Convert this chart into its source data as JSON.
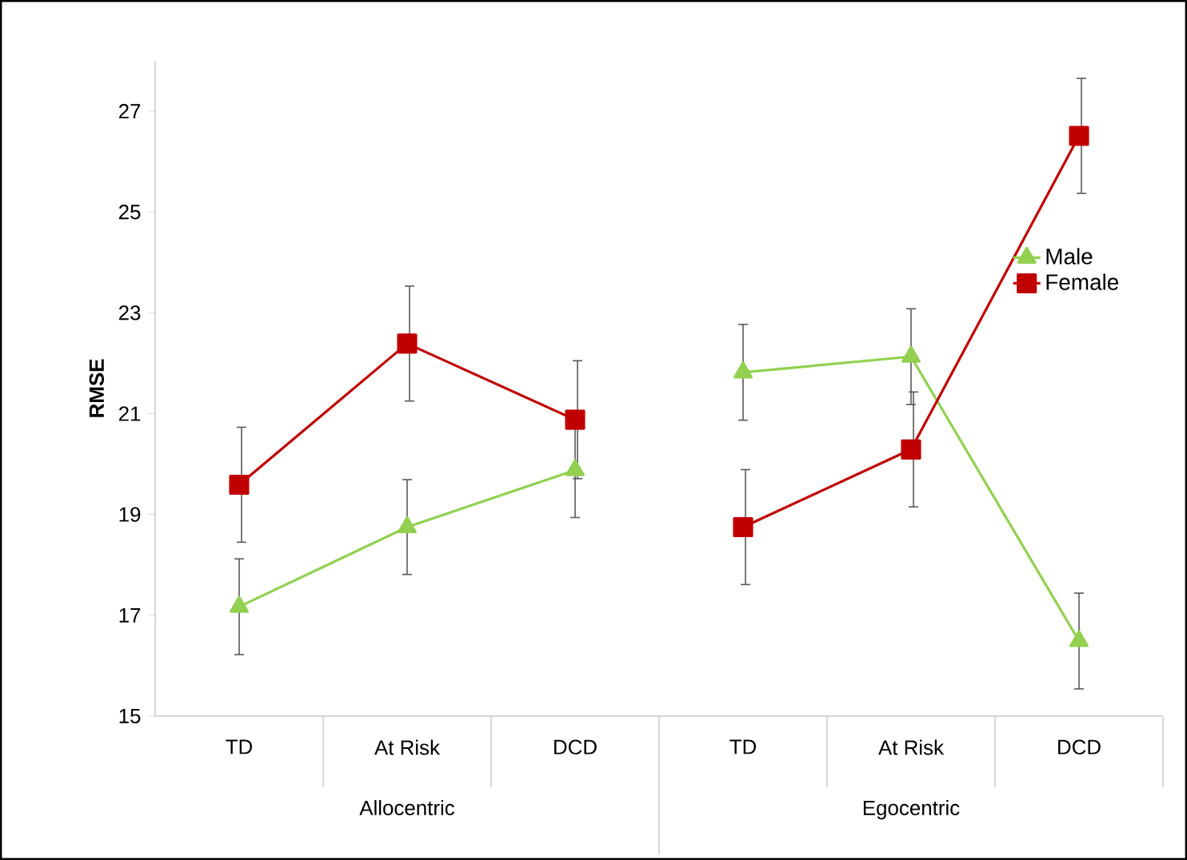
{
  "chart_data": {
    "type": "line",
    "ylabel": "RMSE",
    "categories": [
      "TD",
      "At Risk",
      "DCD",
      "TD",
      "At Risk",
      "DCD"
    ],
    "annotations": [
      "Allocentric",
      "Egocentric"
    ],
    "series": [
      {
        "name": "Male",
        "color": "#92d050",
        "marker": "triangle",
        "values": [
          17.17,
          18.75,
          19.88,
          21.82,
          22.13,
          16.49
        ],
        "errors": [
          0.95,
          0.94,
          0.94,
          0.95,
          0.95,
          0.95
        ]
      },
      {
        "name": "Female",
        "color": "#c00000",
        "marker": "square",
        "values": [
          19.59,
          22.39,
          20.88,
          18.75,
          20.29,
          26.51
        ],
        "errors": [
          1.14,
          1.14,
          1.17,
          1.14,
          1.14,
          1.14
        ]
      }
    ],
    "ylim": [
      15,
      28
    ],
    "yticks": [
      15,
      17,
      19,
      21,
      23,
      25,
      27
    ],
    "grid": false,
    "legend": "right",
    "line_style": "solid"
  }
}
